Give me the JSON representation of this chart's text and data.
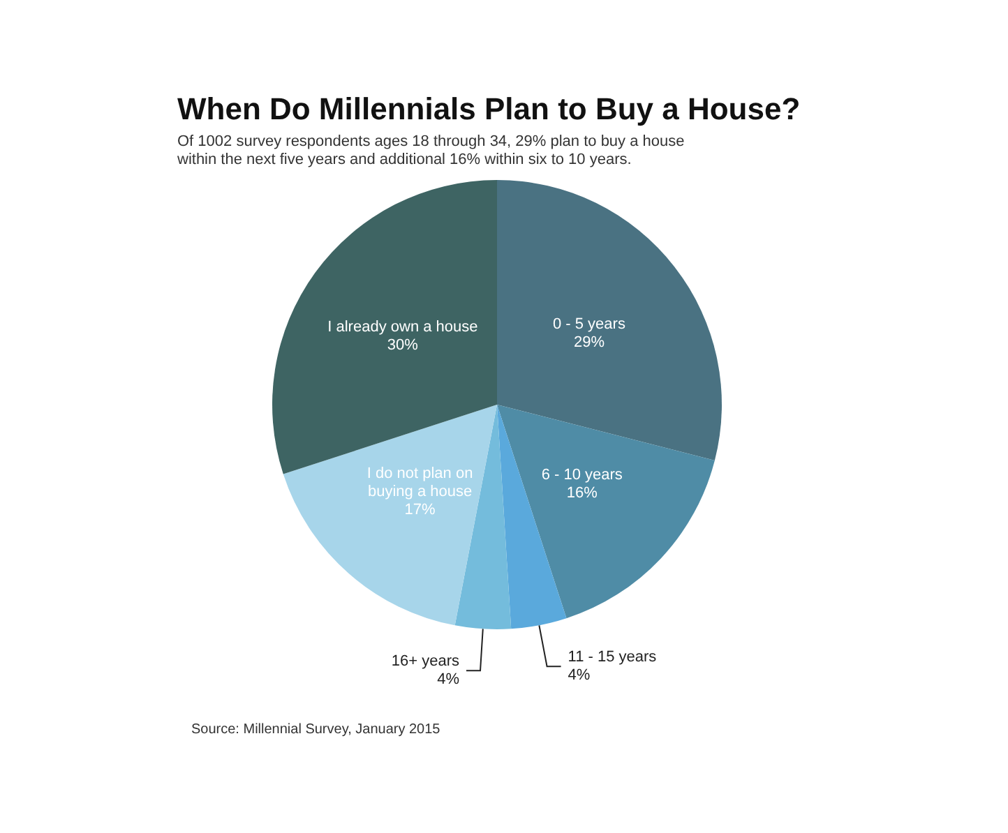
{
  "chart_data": {
    "type": "pie",
    "title": "When Do Millennials Plan to Buy a House?",
    "subtitle": "Of 1002 survey respondents ages 18 through 34, 29% plan to buy a house\nwithin the next five years and additional 16% within six to 10 years.",
    "categories": [
      "0 - 5 years",
      "6 - 10 years",
      "11 - 15 years",
      "16+ years",
      "I do not plan on\nbuying a house",
      "I already own a house"
    ],
    "values": [
      29,
      16,
      4,
      4,
      17,
      30
    ],
    "value_labels": [
      "29%",
      "16%",
      "4%",
      "4%",
      "17%",
      "30%"
    ],
    "colors": [
      "#4a7282",
      "#4f8ca6",
      "#5aa9dc",
      "#74bcdc",
      "#a7d5ea",
      "#3e6463"
    ],
    "annotations": [
      "Source: Millennial Survey, January 2015"
    ],
    "legend": false
  }
}
